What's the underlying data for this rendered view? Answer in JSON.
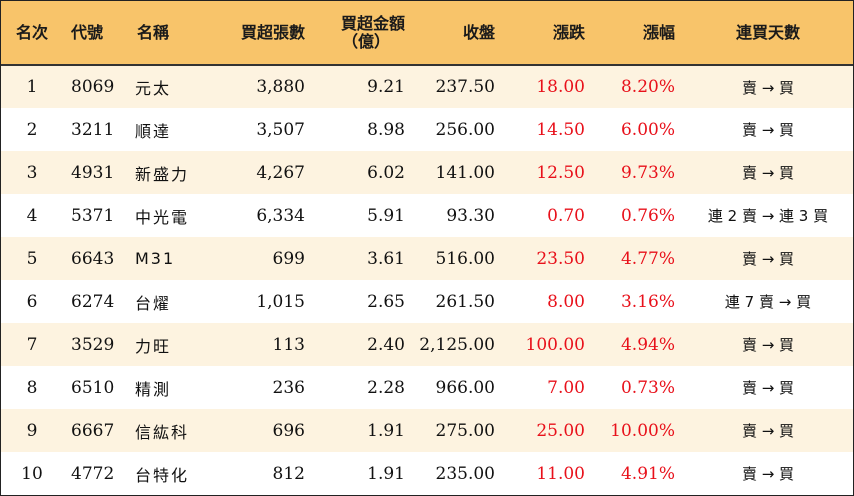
{
  "headers": {
    "rank": "名次",
    "code": "代號",
    "name": "名稱",
    "net_buy_lots": "買超張數",
    "net_buy_amount_line1": "買超金額",
    "net_buy_amount_line2": "（億）",
    "close": "收盤",
    "change": "漲跌",
    "change_pct": "漲幅",
    "consecutive_days": "連買天數"
  },
  "rows": [
    {
      "rank": "1",
      "code": "8069",
      "name": "元太",
      "lots": "3,880",
      "amount": "9.21",
      "close": "237.50",
      "change": "18.00",
      "pct": "8.20%",
      "days": "賣 → 買"
    },
    {
      "rank": "2",
      "code": "3211",
      "name": "順達",
      "lots": "3,507",
      "amount": "8.98",
      "close": "256.00",
      "change": "14.50",
      "pct": "6.00%",
      "days": "賣 → 買"
    },
    {
      "rank": "3",
      "code": "4931",
      "name": "新盛力",
      "lots": "4,267",
      "amount": "6.02",
      "close": "141.00",
      "change": "12.50",
      "pct": "9.73%",
      "days": "賣 → 買"
    },
    {
      "rank": "4",
      "code": "5371",
      "name": "中光電",
      "lots": "6,334",
      "amount": "5.91",
      "close": "93.30",
      "change": "0.70",
      "pct": "0.76%",
      "days": "連 2 賣 → 連 3 買"
    },
    {
      "rank": "5",
      "code": "6643",
      "name": "M31",
      "lots": "699",
      "amount": "3.61",
      "close": "516.00",
      "change": "23.50",
      "pct": "4.77%",
      "days": "賣 → 買"
    },
    {
      "rank": "6",
      "code": "6274",
      "name": "台燿",
      "lots": "1,015",
      "amount": "2.65",
      "close": "261.50",
      "change": "8.00",
      "pct": "3.16%",
      "days": "連 7 賣 → 買"
    },
    {
      "rank": "7",
      "code": "3529",
      "name": "力旺",
      "lots": "113",
      "amount": "2.40",
      "close": "2,125.00",
      "change": "100.00",
      "pct": "4.94%",
      "days": "賣 → 買"
    },
    {
      "rank": "8",
      "code": "6510",
      "name": "精測",
      "lots": "236",
      "amount": "2.28",
      "close": "966.00",
      "change": "7.00",
      "pct": "0.73%",
      "days": "賣 → 買"
    },
    {
      "rank": "9",
      "code": "6667",
      "name": "信紘科",
      "lots": "696",
      "amount": "1.91",
      "close": "275.00",
      "change": "25.00",
      "pct": "10.00%",
      "days": "賣 → 買"
    },
    {
      "rank": "10",
      "code": "4772",
      "name": "台特化",
      "lots": "812",
      "amount": "1.91",
      "close": "235.00",
      "change": "11.00",
      "pct": "4.91%",
      "days": "賣 → 買"
    }
  ],
  "colors": {
    "header_bg": "#f8c46a",
    "odd_row_bg": "#fdf3e0",
    "even_row_bg": "#ffffff",
    "up_red": "#e8101a"
  }
}
